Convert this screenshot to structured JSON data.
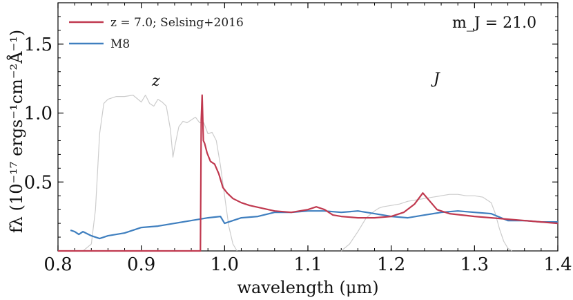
{
  "chart_data": {
    "type": "line",
    "title": "",
    "xlabel": "wavelength (μm)",
    "ylabel": "fλ (10⁻¹⁷ ergs⁻¹cm⁻²Å⁻¹)",
    "xlim": [
      0.8,
      1.4
    ],
    "ylim": [
      0.0,
      1.8
    ],
    "xticks": [
      "0.8",
      "0.9",
      "1.0",
      "1.1",
      "1.2",
      "1.3",
      "1.4"
    ],
    "yticks": [
      "0.5",
      "1.0",
      "1.5"
    ],
    "legend_position": "top-left",
    "annotations": {
      "magnitude": "m_J = 21.0",
      "z_band": "z",
      "j_band": "J"
    },
    "series": [
      {
        "name": "z = 7.0; Selsing+2016",
        "color": "#c0394f",
        "x": [
          0.8,
          0.971,
          0.972,
          0.973,
          0.9745,
          0.976,
          0.979,
          0.983,
          0.988,
          0.993,
          0.998,
          1.003,
          1.01,
          1.02,
          1.03,
          1.045,
          1.06,
          1.08,
          1.1,
          1.11,
          1.12,
          1.13,
          1.14,
          1.16,
          1.18,
          1.2,
          1.215,
          1.228,
          1.238,
          1.245,
          1.255,
          1.27,
          1.3,
          1.32,
          1.34,
          1.36,
          1.38,
          1.4
        ],
        "y": [
          0.0,
          0.0,
          0.95,
          1.13,
          0.8,
          0.78,
          0.71,
          0.65,
          0.63,
          0.56,
          0.46,
          0.42,
          0.38,
          0.35,
          0.33,
          0.31,
          0.29,
          0.28,
          0.3,
          0.32,
          0.3,
          0.26,
          0.25,
          0.24,
          0.24,
          0.25,
          0.28,
          0.34,
          0.42,
          0.37,
          0.3,
          0.27,
          0.25,
          0.24,
          0.23,
          0.22,
          0.21,
          0.2
        ]
      },
      {
        "name": "M8",
        "color": "#3f7fbf",
        "x": [
          0.815,
          0.82,
          0.825,
          0.83,
          0.84,
          0.85,
          0.86,
          0.88,
          0.9,
          0.92,
          0.94,
          0.96,
          0.98,
          0.995,
          1.0,
          1.01,
          1.02,
          1.04,
          1.06,
          1.08,
          1.1,
          1.12,
          1.14,
          1.16,
          1.18,
          1.2,
          1.22,
          1.24,
          1.26,
          1.28,
          1.3,
          1.32,
          1.34,
          1.36,
          1.38,
          1.4
        ],
        "y": [
          0.15,
          0.14,
          0.12,
          0.14,
          0.11,
          0.09,
          0.11,
          0.13,
          0.17,
          0.18,
          0.2,
          0.22,
          0.24,
          0.25,
          0.2,
          0.22,
          0.24,
          0.25,
          0.28,
          0.28,
          0.29,
          0.29,
          0.28,
          0.29,
          0.27,
          0.25,
          0.24,
          0.26,
          0.28,
          0.29,
          0.28,
          0.27,
          0.22,
          0.22,
          0.21,
          0.21
        ]
      },
      {
        "name": "z filter",
        "color": "#cccccc",
        "x": [
          0.83,
          0.84,
          0.845,
          0.85,
          0.855,
          0.86,
          0.87,
          0.88,
          0.89,
          0.9,
          0.905,
          0.91,
          0.915,
          0.92,
          0.925,
          0.93,
          0.935,
          0.938,
          0.94,
          0.945,
          0.95,
          0.955,
          0.96,
          0.965,
          0.97,
          0.975,
          0.98,
          0.985,
          0.99,
          0.995,
          1.0,
          1.005,
          1.01,
          1.015
        ],
        "y": [
          0.0,
          0.05,
          0.3,
          0.85,
          1.07,
          1.1,
          1.12,
          1.12,
          1.13,
          1.08,
          1.13,
          1.07,
          1.05,
          1.1,
          1.08,
          1.05,
          0.88,
          0.68,
          0.75,
          0.9,
          0.94,
          0.93,
          0.95,
          0.97,
          0.93,
          0.93,
          0.85,
          0.86,
          0.8,
          0.62,
          0.4,
          0.18,
          0.05,
          0.0
        ]
      },
      {
        "name": "J filter",
        "color": "#cccccc",
        "x": [
          1.14,
          1.15,
          1.16,
          1.17,
          1.18,
          1.185,
          1.19,
          1.2,
          1.21,
          1.22,
          1.23,
          1.24,
          1.25,
          1.26,
          1.27,
          1.28,
          1.29,
          1.3,
          1.31,
          1.32,
          1.325,
          1.33,
          1.335,
          1.34,
          1.345
        ],
        "y": [
          0.0,
          0.05,
          0.14,
          0.24,
          0.29,
          0.31,
          0.32,
          0.33,
          0.34,
          0.36,
          0.37,
          0.38,
          0.39,
          0.4,
          0.41,
          0.41,
          0.4,
          0.4,
          0.39,
          0.35,
          0.27,
          0.16,
          0.07,
          0.02,
          0.0
        ]
      }
    ]
  }
}
